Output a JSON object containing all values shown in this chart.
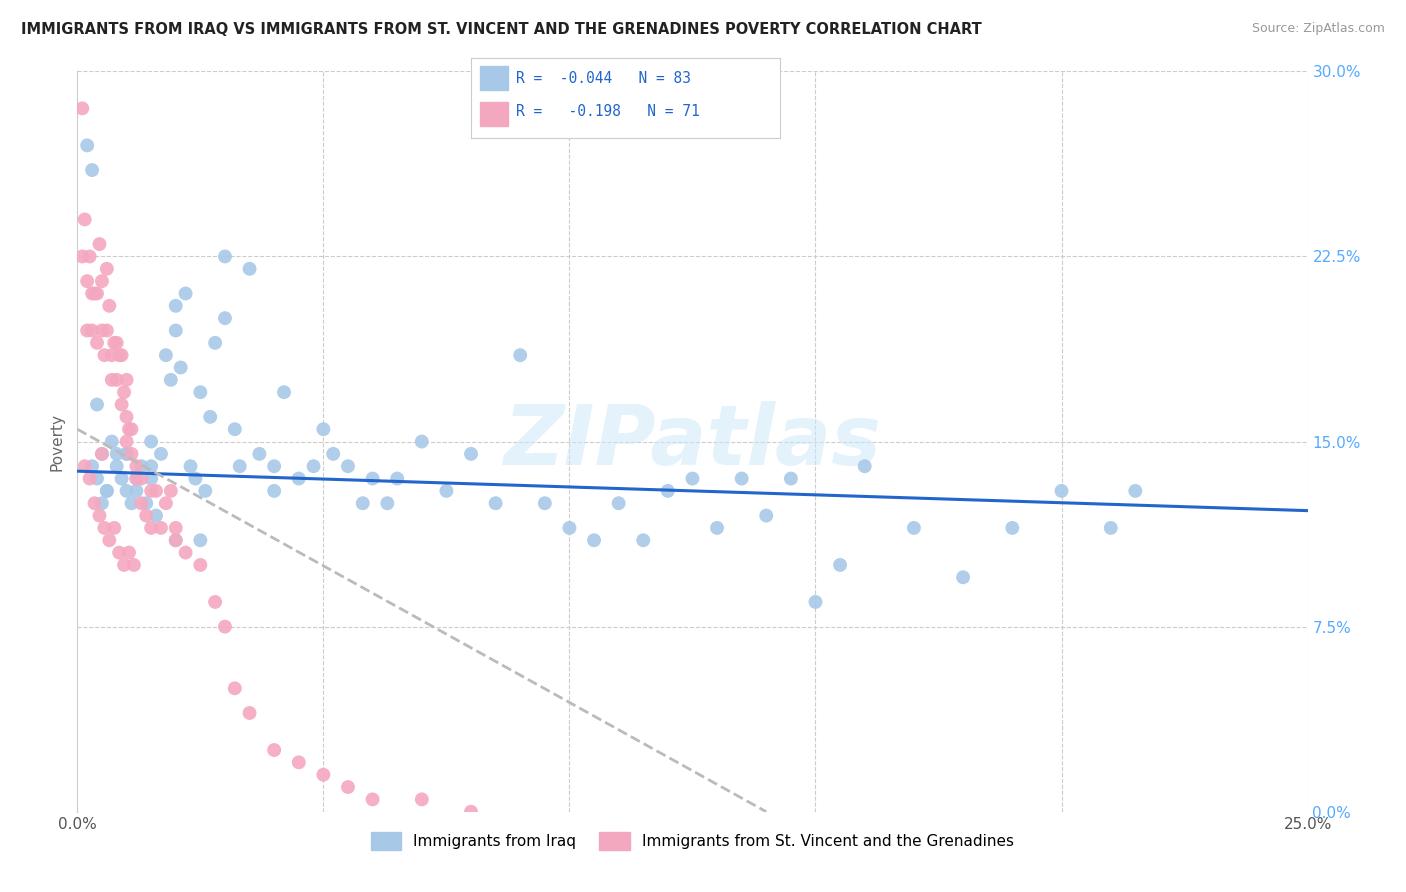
{
  "title": "IMMIGRANTS FROM IRAQ VS IMMIGRANTS FROM ST. VINCENT AND THE GRENADINES POVERTY CORRELATION CHART",
  "source": "Source: ZipAtlas.com",
  "ylabel": "Poverty",
  "r_iraq": -0.044,
  "n_iraq": 83,
  "r_svg": -0.198,
  "n_svg": 71,
  "color_iraq": "#a8c8e8",
  "color_svg": "#f4a8c0",
  "trendline_iraq_color": "#2266cc",
  "trendline_svg_color": "#bbbbbb",
  "legend_iraq": "Immigrants from Iraq",
  "legend_svg": "Immigrants from St. Vincent and the Grenadines",
  "ytick_values": [
    0.0,
    7.5,
    15.0,
    22.5,
    30.0
  ],
  "xlim": [
    0,
    25.0
  ],
  "ylim": [
    0,
    30.0
  ],
  "iraq_x": [
    0.3,
    0.4,
    0.5,
    0.5,
    0.6,
    0.7,
    0.8,
    0.9,
    1.0,
    1.0,
    1.1,
    1.2,
    1.3,
    1.4,
    1.5,
    1.5,
    1.6,
    1.7,
    1.8,
    1.9,
    2.0,
    2.0,
    2.1,
    2.2,
    2.3,
    2.4,
    2.5,
    2.6,
    2.7,
    2.8,
    3.0,
    3.0,
    3.2,
    3.3,
    3.5,
    3.7,
    4.0,
    4.0,
    4.2,
    4.5,
    4.8,
    5.0,
    5.2,
    5.5,
    5.8,
    6.0,
    6.3,
    6.5,
    7.0,
    7.5,
    8.0,
    8.5,
    9.0,
    9.5,
    10.0,
    10.5,
    11.0,
    11.5,
    12.0,
    12.5,
    13.0,
    13.5,
    14.0,
    14.5,
    15.0,
    15.5,
    16.0,
    17.0,
    18.0,
    19.0,
    20.0,
    21.0,
    21.5,
    0.2,
    0.3,
    0.4,
    0.6,
    0.8,
    1.0,
    1.2,
    1.5,
    2.0,
    2.5
  ],
  "iraq_y": [
    14.0,
    13.5,
    14.5,
    12.5,
    13.0,
    15.0,
    14.0,
    13.5,
    14.5,
    13.0,
    12.5,
    13.0,
    14.0,
    12.5,
    15.0,
    13.5,
    12.0,
    14.5,
    18.5,
    17.5,
    20.5,
    19.5,
    18.0,
    21.0,
    14.0,
    13.5,
    17.0,
    13.0,
    16.0,
    19.0,
    22.5,
    20.0,
    15.5,
    14.0,
    22.0,
    14.5,
    14.0,
    13.0,
    17.0,
    13.5,
    14.0,
    15.5,
    14.5,
    14.0,
    12.5,
    13.5,
    12.5,
    13.5,
    15.0,
    13.0,
    14.5,
    12.5,
    18.5,
    12.5,
    11.5,
    11.0,
    12.5,
    11.0,
    13.0,
    13.5,
    11.5,
    13.5,
    12.0,
    13.5,
    8.5,
    10.0,
    14.0,
    11.5,
    9.5,
    11.5,
    13.0,
    11.5,
    13.0,
    27.0,
    26.0,
    16.5,
    13.0,
    14.5,
    14.5,
    13.5,
    14.0,
    11.0,
    11.0
  ],
  "svg_x": [
    0.1,
    0.1,
    0.15,
    0.2,
    0.2,
    0.25,
    0.3,
    0.3,
    0.35,
    0.4,
    0.4,
    0.45,
    0.5,
    0.5,
    0.5,
    0.55,
    0.6,
    0.6,
    0.65,
    0.7,
    0.7,
    0.75,
    0.8,
    0.8,
    0.85,
    0.9,
    0.9,
    0.95,
    1.0,
    1.0,
    1.0,
    1.05,
    1.1,
    1.1,
    1.2,
    1.2,
    1.3,
    1.3,
    1.4,
    1.5,
    1.5,
    1.6,
    1.7,
    1.8,
    1.9,
    2.0,
    2.0,
    2.2,
    2.5,
    2.8,
    3.0,
    3.2,
    3.5,
    4.0,
    4.5,
    5.0,
    5.5,
    6.0,
    7.0,
    8.0,
    0.15,
    0.25,
    0.35,
    0.45,
    0.55,
    0.65,
    0.75,
    0.85,
    0.95,
    1.05,
    1.15
  ],
  "svg_y": [
    28.5,
    22.5,
    24.0,
    21.5,
    19.5,
    22.5,
    21.0,
    19.5,
    21.0,
    21.0,
    19.0,
    23.0,
    21.5,
    19.5,
    14.5,
    18.5,
    22.0,
    19.5,
    20.5,
    18.5,
    17.5,
    19.0,
    17.5,
    19.0,
    18.5,
    16.5,
    18.5,
    17.0,
    17.5,
    16.0,
    15.0,
    15.5,
    14.5,
    15.5,
    14.0,
    13.5,
    12.5,
    13.5,
    12.0,
    13.0,
    11.5,
    13.0,
    11.5,
    12.5,
    13.0,
    11.5,
    11.0,
    10.5,
    10.0,
    8.5,
    7.5,
    5.0,
    4.0,
    2.5,
    2.0,
    1.5,
    1.0,
    0.5,
    0.5,
    0.0,
    14.0,
    13.5,
    12.5,
    12.0,
    11.5,
    11.0,
    11.5,
    10.5,
    10.0,
    10.5,
    10.0
  ],
  "iraq_trend_x0": 0,
  "iraq_trend_x1": 25,
  "iraq_trend_y0": 13.8,
  "iraq_trend_y1": 12.2,
  "svg_trend_x0": 0,
  "svg_trend_x1": 14.0,
  "svg_trend_y0": 15.5,
  "svg_trend_y1": 0.0
}
